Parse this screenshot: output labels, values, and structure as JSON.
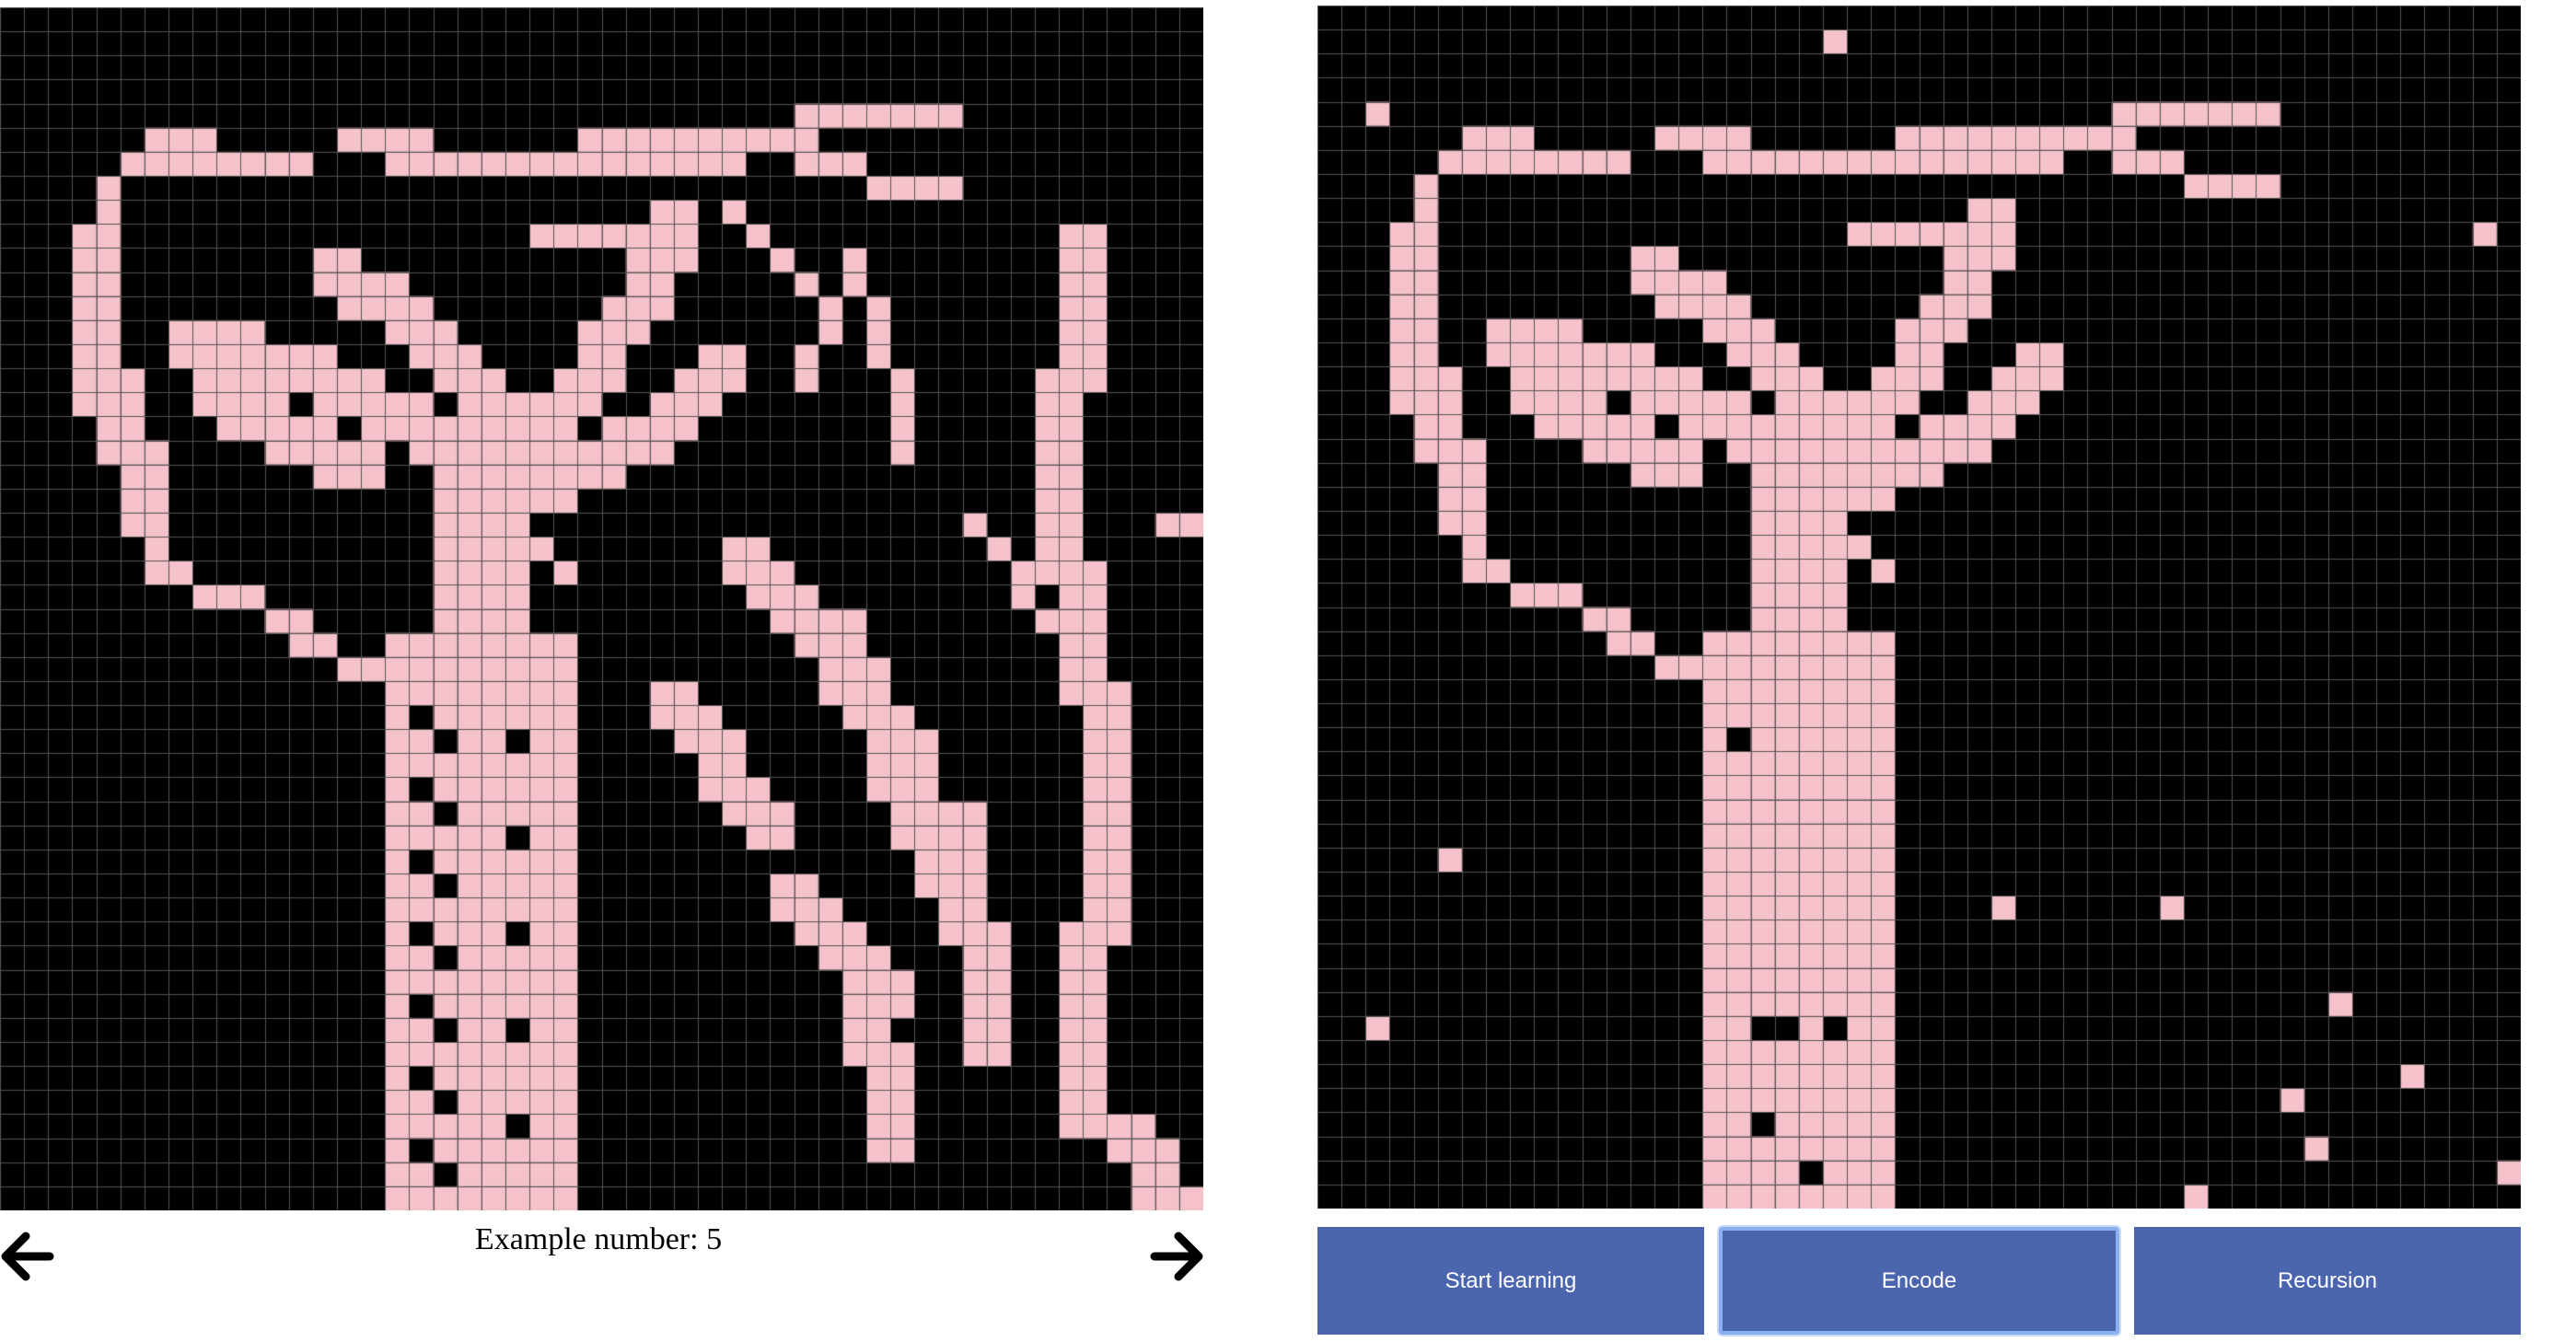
{
  "grid": {
    "size": 50,
    "on_color": "#f5c2cb",
    "off_color": "#000000",
    "line_color": "#555555"
  },
  "left_panel": {
    "example_label": "Example number: 5",
    "prev_icon": "arrow-left-icon",
    "next_icon": "arrow-right-icon"
  },
  "controls": {
    "start_label": "Start learning",
    "encode_label": "Encode",
    "recursion_label": "Recursion"
  }
}
